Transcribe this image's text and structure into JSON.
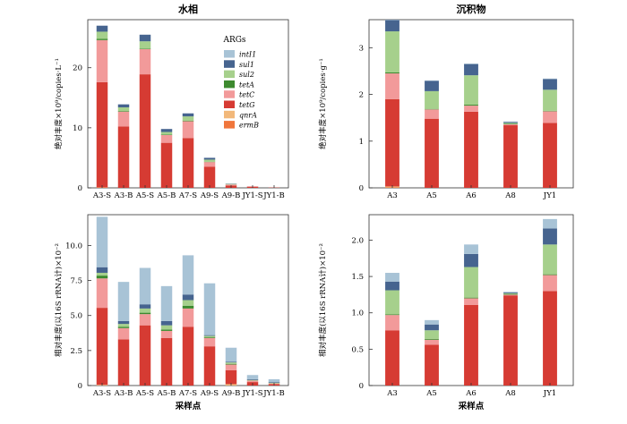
{
  "colors": {
    "intI1": "#a8c3d6",
    "sul1": "#46648f",
    "sul2": "#a6d08c",
    "tetA": "#3d8a2f",
    "tetC": "#f29a9a",
    "tetG": "#d63b33",
    "qnrA": "#f2b87a",
    "ermB": "#f0763c"
  },
  "legend": {
    "title": "ARGs",
    "items": [
      "intI1",
      "sul1",
      "sul2",
      "tetA",
      "tetC",
      "tetG",
      "qnrA",
      "ermB"
    ]
  },
  "chart_data": [
    {
      "type": "bar",
      "stacked": true,
      "title": "水相",
      "ylabel": "绝对丰度×10⁹/copies·L⁻¹",
      "xlabel": "",
      "ylim": [
        0,
        28
      ],
      "yticks": [
        0,
        10,
        20
      ],
      "categories": [
        "A3-S",
        "A3-B",
        "A5-S",
        "A5-B",
        "A7-S",
        "A9-S",
        "A9-B",
        "JY1-S",
        "JY1-B"
      ],
      "series": [
        {
          "name": "ermB",
          "values": [
            0.1,
            0,
            0,
            0,
            0,
            0,
            0,
            0,
            0
          ]
        },
        {
          "name": "qnrA",
          "values": [
            0,
            0,
            0,
            0,
            0,
            0,
            0,
            0,
            0
          ]
        },
        {
          "name": "tetG",
          "values": [
            17.5,
            10.2,
            18.9,
            7.5,
            8.3,
            3.5,
            0.4,
            0.2,
            0.05
          ]
        },
        {
          "name": "tetC",
          "values": [
            7.0,
            2.5,
            4.2,
            1.3,
            2.8,
            0.8,
            0.15,
            0.05,
            0
          ]
        },
        {
          "name": "tetA",
          "values": [
            0.2,
            0.1,
            0.1,
            0.1,
            0.1,
            0.05,
            0,
            0,
            0
          ]
        },
        {
          "name": "sul2",
          "values": [
            1.2,
            0.6,
            1.2,
            0.4,
            0.7,
            0.35,
            0.1,
            0,
            0
          ]
        },
        {
          "name": "sul1",
          "values": [
            1.0,
            0.5,
            1.1,
            0.5,
            0.5,
            0.3,
            0.05,
            0,
            0
          ]
        },
        {
          "name": "intI1",
          "values": [
            0,
            0,
            0,
            0,
            0,
            0,
            0,
            0,
            0
          ]
        }
      ]
    },
    {
      "type": "bar",
      "stacked": true,
      "title": "沉积物",
      "ylabel": "绝对丰度×10⁹/copies·g⁻¹",
      "xlabel": "",
      "ylim": [
        0,
        3.6
      ],
      "yticks": [
        0,
        1,
        2,
        3
      ],
      "categories": [
        "A3",
        "A5",
        "A6",
        "A8",
        "JY1"
      ],
      "series": [
        {
          "name": "ermB",
          "values": [
            0.01,
            0,
            0,
            0,
            0
          ]
        },
        {
          "name": "qnrA",
          "values": [
            0.02,
            0,
            0,
            0,
            0
          ]
        },
        {
          "name": "tetG",
          "values": [
            1.87,
            1.48,
            1.63,
            1.34,
            1.39
          ]
        },
        {
          "name": "tetC",
          "values": [
            0.55,
            0.2,
            0.13,
            0.02,
            0.25
          ]
        },
        {
          "name": "tetA",
          "values": [
            0.02,
            0.01,
            0.02,
            0.01,
            0.01
          ]
        },
        {
          "name": "sul2",
          "values": [
            0.88,
            0.38,
            0.63,
            0.02,
            0.45
          ]
        },
        {
          "name": "sul1",
          "values": [
            0.24,
            0.22,
            0.24,
            0.02,
            0.23
          ]
        },
        {
          "name": "intI1",
          "values": [
            0.01,
            0.01,
            0.01,
            0.01,
            0.01
          ]
        }
      ]
    },
    {
      "type": "bar",
      "stacked": true,
      "title": "",
      "ylabel": "相对丰度(以16S rRNA计)×10⁻²",
      "xlabel": "采样点",
      "ylim": [
        0,
        12.2
      ],
      "yticks": [
        0,
        2.5,
        5.0,
        7.5,
        10.0
      ],
      "ytick_labels": [
        "0",
        "2.5",
        "5.0",
        "7.5",
        "10.0"
      ],
      "categories": [
        "A3-S",
        "A3-B",
        "A5-S",
        "A5-B",
        "A7-S",
        "A9-S",
        "A9-B",
        "JY1-S",
        "JY1-B"
      ],
      "series": [
        {
          "name": "ermB",
          "values": [
            0,
            0,
            0,
            0,
            0,
            0,
            0,
            0,
            0
          ]
        },
        {
          "name": "qnrA",
          "values": [
            0.05,
            0,
            0,
            0,
            0,
            0,
            0.1,
            0,
            0
          ]
        },
        {
          "name": "tetG",
          "values": [
            5.5,
            3.3,
            4.3,
            3.4,
            4.2,
            2.8,
            1.0,
            0.25,
            0.1
          ]
        },
        {
          "name": "tetC",
          "values": [
            2.1,
            0.8,
            0.8,
            0.5,
            1.3,
            0.6,
            0.4,
            0.1,
            0.05
          ]
        },
        {
          "name": "tetA",
          "values": [
            0.2,
            0.1,
            0.1,
            0.1,
            0.2,
            0.05,
            0.05,
            0,
            0
          ]
        },
        {
          "name": "sul2",
          "values": [
            0.2,
            0.2,
            0.3,
            0.3,
            0.4,
            0.1,
            0.1,
            0.05,
            0.05
          ]
        },
        {
          "name": "sul1",
          "values": [
            0.4,
            0.2,
            0.3,
            0.3,
            0.4,
            0.05,
            0.05,
            0.05,
            0.05
          ]
        },
        {
          "name": "intI1",
          "values": [
            3.6,
            2.8,
            2.6,
            2.5,
            2.8,
            3.7,
            1.0,
            0.3,
            0.2
          ]
        }
      ]
    },
    {
      "type": "bar",
      "stacked": true,
      "title": "",
      "ylabel": "相对丰度(以16S rRNA计)×10⁻²",
      "xlabel": "采样点",
      "ylim": [
        0,
        2.35
      ],
      "yticks": [
        0,
        0.5,
        1.0,
        1.5,
        2.0
      ],
      "ytick_labels": [
        "0",
        "0.5",
        "1.0",
        "1.5",
        "2.0"
      ],
      "categories": [
        "A3",
        "A5",
        "A6",
        "A8",
        "JY1"
      ],
      "series": [
        {
          "name": "ermB",
          "values": [
            0,
            0,
            0,
            0,
            0
          ]
        },
        {
          "name": "qnrA",
          "values": [
            0,
            0,
            0,
            0,
            0
          ]
        },
        {
          "name": "tetG",
          "values": [
            0.76,
            0.56,
            1.11,
            1.24,
            1.3
          ]
        },
        {
          "name": "tetC",
          "values": [
            0.21,
            0.07,
            0.09,
            0.01,
            0.22
          ]
        },
        {
          "name": "tetA",
          "values": [
            0.01,
            0.01,
            0.01,
            0.01,
            0.01
          ]
        },
        {
          "name": "sul2",
          "values": [
            0.33,
            0.12,
            0.42,
            0.01,
            0.41
          ]
        },
        {
          "name": "sul1",
          "values": [
            0.12,
            0.08,
            0.18,
            0.01,
            0.22
          ]
        },
        {
          "name": "intI1",
          "values": [
            0.12,
            0.06,
            0.13,
            0.01,
            0.13
          ]
        }
      ]
    }
  ]
}
